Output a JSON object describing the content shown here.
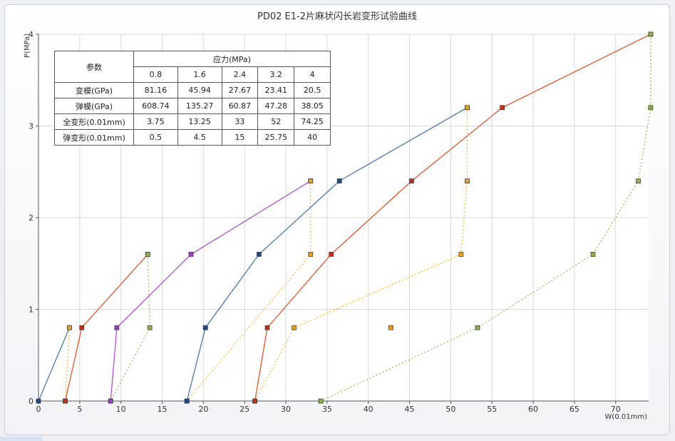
{
  "chart_data": {
    "type": "line",
    "title": "PD02 E1-2片麻状闪长岩变形试验曲线",
    "ylabel": "P(MPa)",
    "xlabel": "W(0.01mm)",
    "xlim": [
      0,
      74
    ],
    "ylim": [
      0,
      4
    ],
    "x_ticks": [
      "0",
      "5",
      "10",
      "15",
      "20",
      "25",
      "30",
      "35",
      "40",
      "45",
      "50",
      "55",
      "60",
      "65",
      "70"
    ],
    "x_tick_values": [
      0,
      5,
      10,
      15,
      20,
      25,
      30,
      35,
      40,
      45,
      50,
      55,
      60,
      65,
      70
    ],
    "y_ticks": [
      "0",
      "1",
      "2",
      "3",
      "4"
    ],
    "y_tick_values": [
      0,
      1,
      2,
      3,
      4
    ],
    "grid": true,
    "series": [
      {
        "color": "#4a7aaa",
        "style": "solid",
        "marker": "#1f4a8a",
        "points": [
          [
            0,
            0
          ],
          [
            3.75,
            0.8
          ]
        ]
      },
      {
        "color": "#ffb030",
        "style": "dotted",
        "marker": "#e8a020",
        "points": [
          [
            3.75,
            0.8
          ],
          [
            3.25,
            0
          ]
        ]
      },
      {
        "color": "#e0552a",
        "style": "solid",
        "marker": "#c0301c",
        "points": [
          [
            3.25,
            0
          ],
          [
            5.25,
            0.8
          ],
          [
            13.25,
            1.6
          ]
        ]
      },
      {
        "color": "#9bbb59",
        "style": "dotted",
        "marker": "#8db04a",
        "points": [
          [
            13.25,
            1.6
          ],
          [
            13.5,
            0.8
          ],
          [
            8.75,
            0
          ]
        ]
      },
      {
        "color": "#b050d0",
        "style": "solid",
        "marker": "#9a40c0",
        "points": [
          [
            8.75,
            0
          ],
          [
            9.5,
            0.8
          ],
          [
            18.5,
            1.6
          ],
          [
            33,
            2.4
          ]
        ]
      },
      {
        "color": "#ffb030",
        "style": "dotted",
        "marker": "#e8a020",
        "points": [
          [
            33,
            2.4
          ],
          [
            33,
            1.6
          ],
          [
            18,
            0
          ]
        ]
      },
      {
        "color": "#4a7aaa",
        "style": "solid",
        "marker": "#1f4a8a",
        "points": [
          [
            18,
            0
          ],
          [
            20.25,
            0.8
          ],
          [
            26.75,
            1.6
          ],
          [
            36.5,
            2.4
          ],
          [
            52,
            3.2
          ]
        ]
      },
      {
        "color": "#ffb030",
        "style": "dotted",
        "marker": "#e8a020",
        "points": [
          [
            52,
            3.2
          ],
          [
            52,
            2.4
          ],
          [
            51.25,
            1.6
          ],
          [
            31,
            0.8
          ],
          [
            26.25,
            0
          ]
        ]
      },
      {
        "color": "#e0552a",
        "style": "solid",
        "marker": "#c0301c",
        "points": [
          [
            26.25,
            0
          ],
          [
            27.75,
            0.8
          ],
          [
            35.5,
            1.6
          ],
          [
            45.25,
            2.4
          ],
          [
            56.25,
            3.2
          ],
          [
            74.25,
            4
          ]
        ]
      },
      {
        "color": "#9bbb59",
        "style": "dotted",
        "marker": "#8db04a",
        "points": [
          [
            74.25,
            4
          ],
          [
            74.25,
            3.2
          ],
          [
            72.75,
            2.4
          ],
          [
            67.25,
            1.6
          ],
          [
            53.25,
            0.8
          ],
          [
            34.25,
            0
          ]
        ]
      },
      {
        "color": "#ffb030",
        "style": "dotted",
        "marker": "#e8a020",
        "points": [
          [
            42.75,
            0.8
          ]
        ]
      }
    ],
    "table": {
      "param_header": "参数",
      "stress_header": "应力(MPa)",
      "stress_levels": [
        "0.8",
        "1.6",
        "2.4",
        "3.2",
        "4"
      ],
      "rows": [
        {
          "label": "变模(GPa)",
          "values": [
            "81.16",
            "45.94",
            "27.67",
            "23.41",
            "20.5"
          ]
        },
        {
          "label": "弹模(GPa)",
          "values": [
            "608.74",
            "135.27",
            "60.87",
            "47.28",
            "38.05"
          ]
        },
        {
          "label": "全变形(0.01mm)",
          "values": [
            "3.75",
            "13.25",
            "33",
            "52",
            "74.25"
          ]
        },
        {
          "label": "弹变形(0.01mm)",
          "values": [
            "0.5",
            "4.5",
            "15",
            "25.75",
            "40"
          ]
        }
      ]
    }
  }
}
